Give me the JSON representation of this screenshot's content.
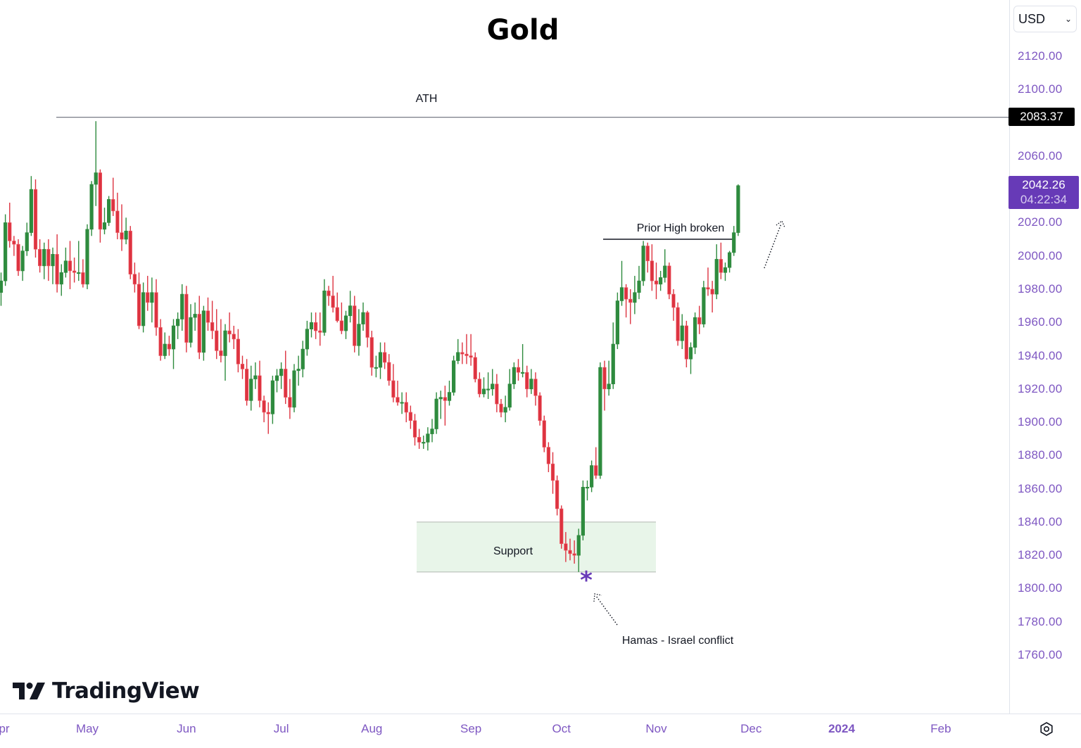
{
  "title": "Gold",
  "currency_select": {
    "value": "USD"
  },
  "price_axis": {
    "labels": [
      "2120.00",
      "2100.00",
      "2060.00",
      "2020.00",
      "2000.00",
      "1980.00",
      "1960.00",
      "1940.00",
      "1920.00",
      "1900.00",
      "1880.00",
      "1860.00",
      "1840.00",
      "1820.00",
      "1800.00",
      "1780.00",
      "1760.00"
    ],
    "ath_tag": "2083.37",
    "current_price": "2042.26",
    "countdown": "04:22:34"
  },
  "time_axis": {
    "labels": [
      {
        "text": "pr",
        "date": "2023-04-01"
      },
      {
        "text": "May",
        "date": "2023-05-01"
      },
      {
        "text": "Jun",
        "date": "2023-06-01"
      },
      {
        "text": "Jul",
        "date": "2023-07-03"
      },
      {
        "text": "Aug",
        "date": "2023-08-01"
      },
      {
        "text": "Sep",
        "date": "2023-09-01"
      },
      {
        "text": "Oct",
        "date": "2023-10-02"
      },
      {
        "text": "Nov",
        "date": "2023-11-01"
      },
      {
        "text": "Dec",
        "date": "2023-12-01"
      },
      {
        "text": "2024",
        "date": "2024-01-01",
        "bold": true
      },
      {
        "text": "Feb",
        "date": "2024-02-01"
      }
    ]
  },
  "annotations": {
    "ath": "ATH",
    "prior_high": "Prior High broken",
    "support": "Support",
    "event": "Hamas - Israel conflict"
  },
  "brand": {
    "name": "TradingView"
  },
  "colors": {
    "up": "#2e8b3e",
    "down": "#dd3340",
    "axis_text": "#7e57c2",
    "current_tag": "#673ab7",
    "support_fill": "#e8f5e9",
    "marker": "#673ab7"
  },
  "chart_data": {
    "type": "candlestick",
    "title": "Gold",
    "currency": "USD",
    "ylim": [
      1740,
      2135
    ],
    "grid": false,
    "ath_level": 2083.37,
    "prior_high_level": 2009,
    "support_zone": [
      1810,
      1840
    ],
    "last_price": 2042.26,
    "candles": [
      [
        "2023-04-03",
        1978,
        1990,
        1970,
        1985
      ],
      [
        "2023-04-04",
        1985,
        2025,
        1982,
        2020
      ],
      [
        "2023-04-05",
        2020,
        2032,
        2005,
        2009
      ],
      [
        "2023-04-06",
        2009,
        2012,
        2000,
        2007
      ],
      [
        "2023-04-07",
        2007,
        2010,
        1988,
        1991
      ],
      [
        "2023-04-10",
        1991,
        2006,
        1985,
        2003
      ],
      [
        "2023-04-11",
        2003,
        2020,
        2000,
        2014
      ],
      [
        "2023-04-12",
        2014,
        2048,
        2012,
        2040
      ],
      [
        "2023-04-13",
        2040,
        2046,
        1999,
        2004
      ],
      [
        "2023-04-14",
        2004,
        2010,
        1990,
        1994
      ],
      [
        "2023-04-17",
        1994,
        2008,
        1986,
        2004
      ],
      [
        "2023-04-18",
        2004,
        2010,
        1985,
        1994
      ],
      [
        "2023-04-19",
        1994,
        2005,
        1983,
        2001
      ],
      [
        "2023-04-20",
        2001,
        2013,
        1978,
        1983
      ],
      [
        "2023-04-21",
        1983,
        1995,
        1976,
        1990
      ],
      [
        "2023-04-24",
        1990,
        2005,
        1987,
        1997
      ],
      [
        "2023-04-25",
        1997,
        2009,
        1980,
        1991
      ],
      [
        "2023-04-26",
        1991,
        1999,
        1984,
        1990
      ],
      [
        "2023-04-27",
        1990,
        2009,
        1985,
        1990
      ],
      [
        "2023-04-28",
        1990,
        1998,
        1981,
        1983
      ],
      [
        "2023-05-01",
        1983,
        2019,
        1980,
        2016
      ],
      [
        "2023-05-02",
        2016,
        2045,
        2012,
        2043
      ],
      [
        "2023-05-03",
        2043,
        2081,
        2030,
        2050
      ],
      [
        "2023-05-04",
        2050,
        2052,
        2008,
        2016
      ],
      [
        "2023-05-05",
        2016,
        2029,
        2013,
        2020
      ],
      [
        "2023-05-08",
        2020,
        2036,
        2018,
        2034
      ],
      [
        "2023-05-09",
        2034,
        2047,
        2024,
        2027
      ],
      [
        "2023-05-10",
        2027,
        2038,
        2010,
        2014
      ],
      [
        "2023-05-11",
        2014,
        2031,
        2003,
        2010
      ],
      [
        "2023-05-12",
        2010,
        2023,
        2007,
        2015
      ],
      [
        "2023-05-15",
        2015,
        2018,
        1986,
        1989
      ],
      [
        "2023-05-16",
        1989,
        1996,
        1978,
        1983
      ],
      [
        "2023-05-17",
        1983,
        1990,
        1956,
        1958
      ],
      [
        "2023-05-18",
        1958,
        1984,
        1954,
        1978
      ],
      [
        "2023-05-19",
        1978,
        1988,
        1967,
        1972
      ],
      [
        "2023-05-22",
        1972,
        1987,
        1960,
        1978
      ],
      [
        "2023-05-23",
        1978,
        1986,
        1952,
        1957
      ],
      [
        "2023-05-24",
        1957,
        1962,
        1937,
        1940
      ],
      [
        "2023-05-25",
        1940,
        1954,
        1938,
        1947
      ],
      [
        "2023-05-26",
        1947,
        1952,
        1940,
        1944
      ],
      [
        "2023-05-29",
        1944,
        1962,
        1932,
        1958
      ],
      [
        "2023-05-30",
        1958,
        1966,
        1950,
        1962
      ],
      [
        "2023-05-31",
        1962,
        1983,
        1955,
        1977
      ],
      [
        "2023-06-01",
        1977,
        1982,
        1942,
        1948
      ],
      [
        "2023-06-02",
        1948,
        1971,
        1945,
        1963
      ],
      [
        "2023-06-05",
        1963,
        1972,
        1955,
        1965
      ],
      [
        "2023-06-06",
        1965,
        1976,
        1938,
        1942
      ],
      [
        "2023-06-07",
        1942,
        1970,
        1937,
        1967
      ],
      [
        "2023-06-08",
        1967,
        1975,
        1955,
        1960
      ],
      [
        "2023-06-09",
        1960,
        1973,
        1950,
        1955
      ],
      [
        "2023-06-12",
        1955,
        1968,
        1938,
        1943
      ],
      [
        "2023-06-13",
        1943,
        1962,
        1936,
        1940
      ],
      [
        "2023-06-14",
        1940,
        1959,
        1925,
        1955
      ],
      [
        "2023-06-15",
        1955,
        1966,
        1948,
        1953
      ],
      [
        "2023-06-16",
        1953,
        1958,
        1944,
        1950
      ],
      [
        "2023-06-19",
        1950,
        1956,
        1930,
        1935
      ],
      [
        "2023-06-20",
        1935,
        1940,
        1926,
        1932
      ],
      [
        "2023-06-21",
        1932,
        1938,
        1910,
        1913
      ],
      [
        "2023-06-22",
        1913,
        1934,
        1907,
        1926
      ],
      [
        "2023-06-23",
        1926,
        1936,
        1920,
        1928
      ],
      [
        "2023-06-26",
        1928,
        1937,
        1909,
        1913
      ],
      [
        "2023-06-27",
        1913,
        1916,
        1900,
        1906
      ],
      [
        "2023-06-28",
        1906,
        1912,
        1893,
        1905
      ],
      [
        "2023-06-29",
        1905,
        1928,
        1899,
        1925
      ],
      [
        "2023-06-30",
        1925,
        1932,
        1918,
        1928
      ],
      [
        "2023-07-03",
        1928,
        1936,
        1920,
        1932
      ],
      [
        "2023-07-04",
        1932,
        1943,
        1911,
        1915
      ],
      [
        "2023-07-05",
        1915,
        1926,
        1902,
        1909
      ],
      [
        "2023-07-06",
        1909,
        1935,
        1906,
        1931
      ],
      [
        "2023-07-07",
        1931,
        1940,
        1922,
        1932
      ],
      [
        "2023-07-10",
        1932,
        1949,
        1927,
        1944
      ],
      [
        "2023-07-11",
        1944,
        1961,
        1940,
        1956
      ],
      [
        "2023-07-12",
        1956,
        1966,
        1951,
        1960
      ],
      [
        "2023-07-13",
        1960,
        1966,
        1950,
        1955
      ],
      [
        "2023-07-14",
        1955,
        1966,
        1946,
        1954
      ],
      [
        "2023-07-17",
        1954,
        1986,
        1952,
        1979
      ],
      [
        "2023-07-18",
        1979,
        1982,
        1970,
        1976
      ],
      [
        "2023-07-19",
        1976,
        1988,
        1966,
        1969
      ],
      [
        "2023-07-20",
        1969,
        1978,
        1960,
        1961
      ],
      [
        "2023-07-21",
        1961,
        1972,
        1953,
        1955
      ],
      [
        "2023-07-24",
        1955,
        1967,
        1950,
        1964
      ],
      [
        "2023-07-25",
        1964,
        1979,
        1960,
        1970
      ],
      [
        "2023-07-26",
        1970,
        1976,
        1942,
        1946
      ],
      [
        "2023-07-27",
        1946,
        1968,
        1940,
        1959
      ],
      [
        "2023-07-28",
        1959,
        1972,
        1955,
        1966
      ],
      [
        "2023-07-31",
        1966,
        1967,
        1945,
        1951
      ],
      [
        "2023-08-01",
        1951,
        1955,
        1928,
        1933
      ],
      [
        "2023-08-02",
        1933,
        1940,
        1927,
        1933
      ],
      [
        "2023-08-03",
        1933,
        1948,
        1926,
        1942
      ],
      [
        "2023-08-04",
        1942,
        1948,
        1932,
        1936
      ],
      [
        "2023-08-07",
        1936,
        1941,
        1922,
        1925
      ],
      [
        "2023-08-08",
        1925,
        1935,
        1912,
        1915
      ],
      [
        "2023-08-09",
        1915,
        1925,
        1910,
        1912
      ],
      [
        "2023-08-10",
        1912,
        1918,
        1905,
        1912
      ],
      [
        "2023-08-11",
        1912,
        1918,
        1900,
        1906
      ],
      [
        "2023-08-14",
        1906,
        1910,
        1896,
        1901
      ],
      [
        "2023-08-15",
        1901,
        1905,
        1886,
        1891
      ],
      [
        "2023-08-16",
        1891,
        1896,
        1884,
        1888
      ],
      [
        "2023-08-17",
        1888,
        1892,
        1884,
        1888
      ],
      [
        "2023-08-18",
        1888,
        1897,
        1883,
        1893
      ],
      [
        "2023-08-21",
        1893,
        1902,
        1888,
        1896
      ],
      [
        "2023-08-22",
        1896,
        1918,
        1893,
        1914
      ],
      [
        "2023-08-23",
        1914,
        1919,
        1902,
        1915
      ],
      [
        "2023-08-24",
        1915,
        1922,
        1898,
        1913
      ],
      [
        "2023-08-25",
        1913,
        1925,
        1910,
        1918
      ],
      [
        "2023-08-28",
        1918,
        1940,
        1916,
        1937
      ],
      [
        "2023-08-29",
        1937,
        1950,
        1935,
        1942
      ],
      [
        "2023-08-30",
        1942,
        1948,
        1935,
        1941
      ],
      [
        "2023-08-31",
        1941,
        1953,
        1935,
        1940
      ],
      [
        "2023-09-01",
        1940,
        1953,
        1934,
        1939
      ],
      [
        "2023-09-04",
        1939,
        1942,
        1924,
        1926
      ],
      [
        "2023-09-05",
        1926,
        1930,
        1915,
        1917
      ],
      [
        "2023-09-06",
        1917,
        1927,
        1915,
        1920
      ],
      [
        "2023-09-07",
        1920,
        1930,
        1914,
        1920
      ],
      [
        "2023-09-08",
        1920,
        1932,
        1916,
        1923
      ],
      [
        "2023-09-11",
        1923,
        1929,
        1906,
        1911
      ],
      [
        "2023-09-12",
        1911,
        1914,
        1903,
        1906
      ],
      [
        "2023-09-13",
        1906,
        1916,
        1900,
        1909
      ],
      [
        "2023-09-14",
        1909,
        1932,
        1907,
        1923
      ],
      [
        "2023-09-15",
        1923,
        1936,
        1920,
        1933
      ],
      [
        "2023-09-18",
        1933,
        1938,
        1925,
        1930
      ],
      [
        "2023-09-19",
        1930,
        1947,
        1927,
        1930
      ],
      [
        "2023-09-20",
        1930,
        1934,
        1915,
        1920
      ],
      [
        "2023-09-21",
        1920,
        1932,
        1917,
        1926
      ],
      [
        "2023-09-22",
        1926,
        1930,
        1910,
        1916
      ],
      [
        "2023-09-25",
        1916,
        1918,
        1898,
        1901
      ],
      [
        "2023-09-26",
        1901,
        1904,
        1882,
        1885
      ],
      [
        "2023-09-27",
        1885,
        1888,
        1870,
        1875
      ],
      [
        "2023-09-28",
        1875,
        1882,
        1857,
        1865
      ],
      [
        "2023-09-29",
        1865,
        1868,
        1844,
        1848
      ],
      [
        "2023-10-02",
        1848,
        1850,
        1824,
        1827
      ],
      [
        "2023-10-03",
        1827,
        1834,
        1816,
        1823
      ],
      [
        "2023-10-04",
        1823,
        1830,
        1817,
        1821
      ],
      [
        "2023-10-05",
        1821,
        1829,
        1815,
        1820
      ],
      [
        "2023-10-06",
        1820,
        1836,
        1810,
        1832
      ],
      [
        "2023-10-09",
        1832,
        1865,
        1829,
        1861
      ],
      [
        "2023-10-10",
        1861,
        1865,
        1853,
        1861
      ],
      [
        "2023-10-11",
        1861,
        1877,
        1858,
        1874
      ],
      [
        "2023-10-12",
        1874,
        1885,
        1866,
        1868
      ],
      [
        "2023-10-13",
        1868,
        1936,
        1866,
        1933
      ],
      [
        "2023-10-16",
        1933,
        1937,
        1907,
        1920
      ],
      [
        "2023-10-17",
        1920,
        1937,
        1916,
        1923
      ],
      [
        "2023-10-18",
        1923,
        1960,
        1920,
        1947
      ],
      [
        "2023-10-19",
        1947,
        1978,
        1944,
        1973
      ],
      [
        "2023-10-20",
        1973,
        1997,
        1970,
        1981
      ],
      [
        "2023-10-23",
        1981,
        1983,
        1963,
        1974
      ],
      [
        "2023-10-24",
        1974,
        1980,
        1959,
        1972
      ],
      [
        "2023-10-25",
        1972,
        1988,
        1965,
        1978
      ],
      [
        "2023-10-26",
        1978,
        1994,
        1974,
        1985
      ],
      [
        "2023-10-27",
        1985,
        2009,
        1982,
        2006
      ],
      [
        "2023-10-30",
        2006,
        2008,
        1990,
        1997
      ],
      [
        "2023-10-31",
        1997,
        2007,
        1979,
        1985
      ],
      [
        "2023-11-01",
        1985,
        1996,
        1974,
        1983
      ],
      [
        "2023-11-02",
        1983,
        1991,
        1979,
        1987
      ],
      [
        "2023-11-03",
        1987,
        2004,
        1984,
        1994
      ],
      [
        "2023-11-06",
        1994,
        1996,
        1974,
        1977
      ],
      [
        "2023-11-07",
        1977,
        1980,
        1961,
        1969
      ],
      [
        "2023-11-08",
        1969,
        1972,
        1946,
        1949
      ],
      [
        "2023-11-09",
        1949,
        1965,
        1944,
        1958
      ],
      [
        "2023-11-10",
        1958,
        1961,
        1933,
        1938
      ],
      [
        "2023-11-13",
        1938,
        1948,
        1929,
        1945
      ],
      [
        "2023-11-14",
        1945,
        1966,
        1941,
        1963
      ],
      [
        "2023-11-15",
        1963,
        1970,
        1953,
        1959
      ],
      [
        "2023-11-16",
        1959,
        1985,
        1957,
        1981
      ],
      [
        "2023-11-17",
        1981,
        1993,
        1976,
        1980
      ],
      [
        "2023-11-20",
        1980,
        1985,
        1966,
        1977
      ],
      [
        "2023-11-21",
        1977,
        2007,
        1974,
        1998
      ],
      [
        "2023-11-22",
        1998,
        2008,
        1986,
        1990
      ],
      [
        "2023-11-23",
        1990,
        1996,
        1985,
        1993
      ],
      [
        "2023-11-24",
        1993,
        2003,
        1990,
        2002
      ],
      [
        "2023-11-27",
        2002,
        2018,
        2000,
        2014
      ],
      [
        "2023-11-28",
        2014,
        2043,
        2012,
        2042.26
      ]
    ]
  }
}
